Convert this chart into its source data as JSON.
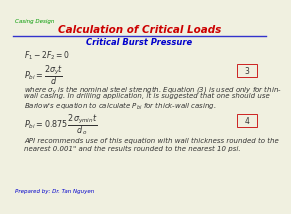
{
  "title": "Calculation of Critical Loads",
  "subtitle": "Critical Burst Pressure",
  "header_label": "Casing Design",
  "footer_label": "Prepared by: Dr. Tan Nguyen",
  "title_color": "#cc0000",
  "subtitle_color": "#0000cc",
  "header_color": "#009900",
  "footer_color": "#0000cc",
  "line_color": "#3333cc",
  "text_color": "#333333",
  "bg_color": "#f0f0e0",
  "equation1": "$F_1 - 2F_2 = 0$",
  "equation2": "$P_{bi} = \\dfrac{2\\sigma_y t}{d}$",
  "equation3": "$P_{bi} = 0.875\\,\\dfrac{2\\sigma_{ymin}t}{d_o}$",
  "eq2_box": "3",
  "eq3_box": "4",
  "body_text1": "where $\\sigma_y$ is the nominal steel strength. Equation (3) is used only for thin-",
  "body_text2": "wall casing. In drilling application, it is suggested that one should use",
  "body_text3": "Barlow's equation to calculate $P_{bi}$ for thick-wall casing.",
  "api_text1": "API recommends use of this equation with wall thickness rounded to the",
  "api_text2": "nearest 0.001\" and the results rounded to the nearest 10 psi."
}
